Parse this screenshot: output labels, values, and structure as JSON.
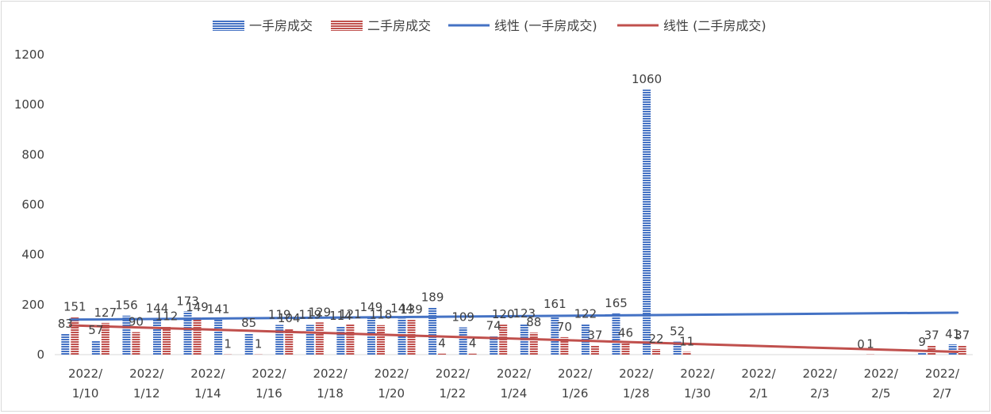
{
  "chart_data": {
    "type": "bar",
    "categories": [
      "2022/1/10",
      "2022/1/11",
      "2022/1/12",
      "2022/1/13",
      "2022/1/14",
      "2022/1/15",
      "2022/1/16",
      "2022/1/17",
      "2022/1/18",
      "2022/1/19",
      "2022/1/20",
      "2022/1/21",
      "2022/1/22",
      "2022/1/23",
      "2022/1/24",
      "2022/1/25",
      "2022/1/26",
      "2022/1/27",
      "2022/1/28",
      "2022/1/29",
      "2022/1/30",
      "2022/1/31",
      "2022/2/1",
      "2022/2/2",
      "2022/2/3",
      "2022/2/4",
      "2022/2/5",
      "2022/2/6",
      "2022/2/7",
      "2022/2/8"
    ],
    "x_tick_labels": [
      {
        "category": "2022/1/10",
        "line1": "2022/",
        "line2": "1/10"
      },
      {
        "category": "2022/1/12",
        "line1": "2022/",
        "line2": "1/12"
      },
      {
        "category": "2022/1/14",
        "line1": "2022/",
        "line2": "1/14"
      },
      {
        "category": "2022/1/16",
        "line1": "2022/",
        "line2": "1/16"
      },
      {
        "category": "2022/1/18",
        "line1": "2022/",
        "line2": "1/18"
      },
      {
        "category": "2022/1/20",
        "line1": "2022/",
        "line2": "1/20"
      },
      {
        "category": "2022/1/22",
        "line1": "2022/",
        "line2": "1/22"
      },
      {
        "category": "2022/1/24",
        "line1": "2022/",
        "line2": "1/24"
      },
      {
        "category": "2022/1/26",
        "line1": "2022/",
        "line2": "1/26"
      },
      {
        "category": "2022/1/28",
        "line1": "2022/",
        "line2": "1/28"
      },
      {
        "category": "2022/1/30",
        "line1": "2022/",
        "line2": "1/30"
      },
      {
        "category": "2022/2/1",
        "line1": "2022/",
        "line2": "2/1"
      },
      {
        "category": "2022/2/3",
        "line1": "2022/",
        "line2": "2/3"
      },
      {
        "category": "2022/2/5",
        "line1": "2022/",
        "line2": "2/5"
      },
      {
        "category": "2022/2/7",
        "line1": "2022/",
        "line2": "2/7"
      }
    ],
    "series": [
      {
        "name": "一手房成交",
        "color": "#4472c4",
        "values": [
          83,
          57,
          156,
          144,
          173,
          141,
          85,
          119,
          119,
          114,
          149,
          144,
          189,
          109,
          74,
          123,
          161,
          122,
          165,
          1060,
          52,
          null,
          null,
          null,
          null,
          null,
          0,
          null,
          9,
          41
        ]
      },
      {
        "name": "二手房成交",
        "color": "#c0504d",
        "values": [
          151,
          127,
          90,
          112,
          149,
          1,
          1,
          104,
          129,
          121,
          118,
          139,
          4,
          4,
          120,
          88,
          70,
          37,
          46,
          22,
          11,
          null,
          null,
          null,
          null,
          null,
          1,
          null,
          37,
          37
        ]
      }
    ],
    "trendlines": [
      {
        "name": "线性 (一手房成交)",
        "color": "#4472c4",
        "start": 140,
        "end": 168
      },
      {
        "name": "线性 (二手房成交)",
        "color": "#c0504d",
        "start": 117,
        "end": 11
      }
    ],
    "ylim": [
      0,
      1200
    ],
    "yticks": [
      0,
      200,
      400,
      600,
      800,
      1000,
      1200
    ],
    "legend_position": "top",
    "grid": false
  }
}
